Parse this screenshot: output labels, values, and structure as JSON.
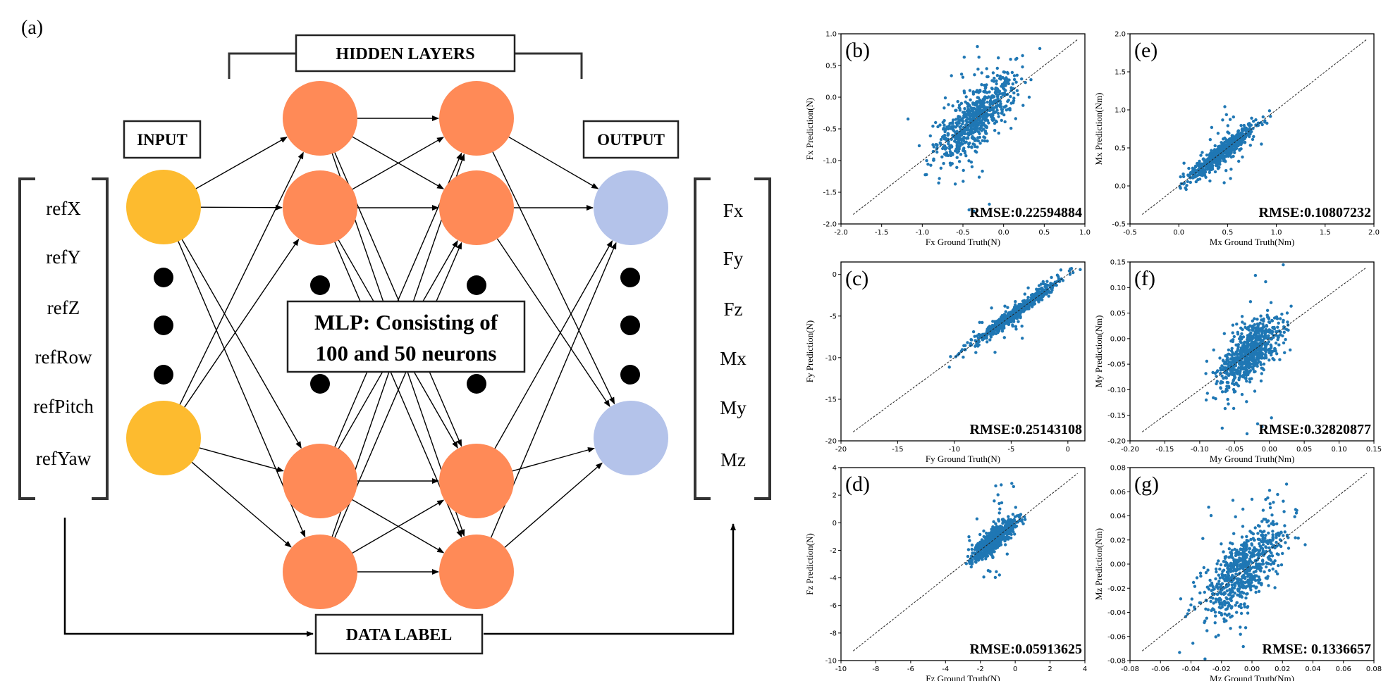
{
  "diagram": {
    "panel_label": "(a)",
    "hidden_layers_label": "HIDDEN LAYERS",
    "input_label": "INPUT",
    "output_label": "OUTPUT",
    "data_label": "DATA LABEL",
    "mlp_line1": "MLP: Consisting of",
    "mlp_line2": "100 and 50 neurons",
    "inputs": [
      "refX",
      "refY",
      "refZ",
      "refRow",
      "refPitch",
      "refYaw"
    ],
    "outputs": [
      "Fx",
      "Fy",
      "Fz",
      "Mx",
      "My",
      "Mz"
    ],
    "colors": {
      "input": "#FDBB2F",
      "hidden": "#FF8A57",
      "output": "#B4C3EA",
      "dot": "#000000"
    }
  },
  "chart_data": [
    {
      "type": "scatter",
      "panel": "(b)",
      "xlabel": "Fx Ground Truth(N)",
      "ylabel": "Fx Prediction(N)",
      "xlim": [
        -2.0,
        1.0
      ],
      "ylim": [
        -2.0,
        1.0
      ],
      "xticks": [
        "-2.0",
        "-1.5",
        "-1.0",
        "-0.5",
        "0.0",
        "0.5",
        "1.0"
      ],
      "yticks": [
        "-2.0",
        "-1.5",
        "-1.0",
        "-0.5",
        "0.0",
        "0.5",
        "1.0"
      ],
      "annotation": "RMSE:0.22594884",
      "spread": 0.22,
      "center": [
        -0.35,
        0.45
      ]
    },
    {
      "type": "scatter",
      "panel": "(e)",
      "xlabel": "Mx Ground Truth(Nm)",
      "ylabel": "Mx Prediction(Nm)",
      "xlim": [
        -0.5,
        2.0
      ],
      "ylim": [
        -0.5,
        2.0
      ],
      "xticks": [
        "-0.5",
        "0.0",
        "0.5",
        "1.0",
        "1.5",
        "2.0"
      ],
      "yticks": [
        "-0.5",
        "0.0",
        "0.5",
        "1.0",
        "1.5",
        "2.0"
      ],
      "annotation": "RMSE:0.10807232",
      "spread": 0.06,
      "center": [
        0.45,
        0.3
      ]
    },
    {
      "type": "scatter",
      "panel": "(c)",
      "xlabel": "Fy Ground Truth(N)",
      "ylabel": "Fy Prediction(N)",
      "xlim": [
        -20,
        1.5
      ],
      "ylim": [
        -20,
        1.5
      ],
      "xticks": [
        "-20",
        "-15",
        "-10",
        "-5",
        "0"
      ],
      "yticks": [
        "-20",
        "-15",
        "-10",
        "-5",
        "0"
      ],
      "annotation": "RMSE:0.25143108",
      "spread": 0.4,
      "center": [
        -4.5,
        3.5
      ]
    },
    {
      "type": "scatter",
      "panel": "(f)",
      "xlabel": "My Ground Truth(Nm)",
      "ylabel": "My Prediction(Nm)",
      "xlim": [
        -0.2,
        0.15
      ],
      "ylim": [
        -0.2,
        0.15
      ],
      "xticks": [
        "-0.20",
        "-0.15",
        "-0.10",
        "-0.05",
        "0.00",
        "0.05",
        "0.10",
        "0.15"
      ],
      "yticks": [
        "-0.20",
        "-0.15",
        "-0.10",
        "-0.05",
        "0.00",
        "0.05",
        "0.10",
        "0.15"
      ],
      "annotation": "RMSE:0.32820877",
      "spread": 0.025,
      "center": [
        -0.03,
        0.04
      ]
    },
    {
      "type": "scatter",
      "panel": "(d)",
      "xlabel": "Fz Ground Truth(N)",
      "ylabel": "Fz Prediction(N)",
      "xlim": [
        -10,
        4
      ],
      "ylim": [
        -10,
        4
      ],
      "xticks": [
        "-10",
        "-8",
        "-6",
        "-4",
        "-2",
        "0",
        "2",
        "4"
      ],
      "yticks": [
        "-10",
        "-8",
        "-6",
        "-4",
        "-2",
        "0",
        "2",
        "4"
      ],
      "annotation": "RMSE:0.05913625",
      "spread": 0.4,
      "center": [
        -1.2,
        1.1
      ]
    },
    {
      "type": "scatter",
      "panel": "(g)",
      "xlabel": "Mz Ground Truth(Nm)",
      "ylabel": "Mz Prediction(Nm)",
      "xlim": [
        -0.08,
        0.08
      ],
      "ylim": [
        -0.08,
        0.08
      ],
      "xticks": [
        "-0.08",
        "-0.06",
        "-0.04",
        "-0.02",
        "0.00",
        "0.02",
        "0.04",
        "0.06",
        "0.08"
      ],
      "yticks": [
        "-0.08",
        "-0.06",
        "-0.04",
        "-0.02",
        "0.00",
        "0.02",
        "0.04",
        "0.06",
        "0.08"
      ],
      "annotation": "RMSE: 0.1336657",
      "spread": 0.015,
      "center": [
        -0.005,
        0.025
      ]
    }
  ]
}
